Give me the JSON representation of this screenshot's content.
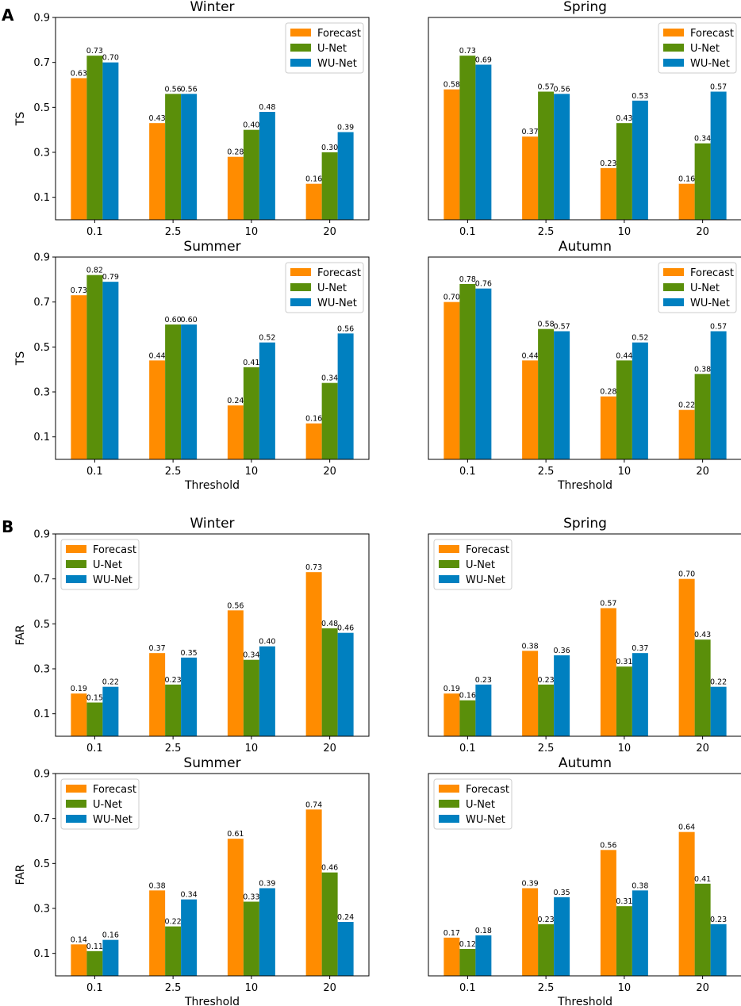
{
  "panel_labels": [
    "A",
    "B"
  ],
  "colors": {
    "Forecast": "#ff8c00",
    "U-Net": "#5a8f0a",
    "WU-Net": "#0080c0"
  },
  "chart_data": [
    {
      "type": "bar",
      "panel": "A",
      "title": "Winter",
      "ylabel": "TS",
      "xlabel": "",
      "categories": [
        "0.1",
        "2.5",
        "10",
        "20"
      ],
      "ylim": [
        0,
        0.9
      ],
      "yticks": [
        "0.1",
        "0.3",
        "0.5",
        "0.7",
        "0.9"
      ],
      "legend": "top-right",
      "series": [
        {
          "name": "Forecast",
          "values": [
            0.63,
            0.43,
            0.28,
            0.16
          ]
        },
        {
          "name": "U-Net",
          "values": [
            0.73,
            0.56,
            0.4,
            0.3
          ]
        },
        {
          "name": "WU-Net",
          "values": [
            0.7,
            0.56,
            0.48,
            0.39
          ]
        }
      ]
    },
    {
      "type": "bar",
      "panel": "A",
      "title": "Spring",
      "ylabel": "",
      "xlabel": "",
      "categories": [
        "0.1",
        "2.5",
        "10",
        "20"
      ],
      "ylim": [
        0,
        0.9
      ],
      "yticks": [],
      "legend": "top-right",
      "series": [
        {
          "name": "Forecast",
          "values": [
            0.58,
            0.37,
            0.23,
            0.16
          ]
        },
        {
          "name": "U-Net",
          "values": [
            0.73,
            0.57,
            0.43,
            0.34
          ]
        },
        {
          "name": "WU-Net",
          "values": [
            0.69,
            0.56,
            0.53,
            0.57
          ]
        }
      ]
    },
    {
      "type": "bar",
      "panel": "A",
      "title": "Summer",
      "ylabel": "TS",
      "xlabel": "Threshold",
      "categories": [
        "0.1",
        "2.5",
        "10",
        "20"
      ],
      "ylim": [
        0,
        0.9
      ],
      "yticks": [
        "0.1",
        "0.3",
        "0.5",
        "0.7",
        "0.9"
      ],
      "legend": "top-right",
      "series": [
        {
          "name": "Forecast",
          "values": [
            0.73,
            0.44,
            0.24,
            0.16
          ]
        },
        {
          "name": "U-Net",
          "values": [
            0.82,
            0.6,
            0.41,
            0.34
          ]
        },
        {
          "name": "WU-Net",
          "values": [
            0.79,
            0.6,
            0.52,
            0.56
          ]
        }
      ]
    },
    {
      "type": "bar",
      "panel": "A",
      "title": "Autumn",
      "ylabel": "",
      "xlabel": "Threshold",
      "categories": [
        "0.1",
        "2.5",
        "10",
        "20"
      ],
      "ylim": [
        0,
        0.9
      ],
      "yticks": [],
      "legend": "top-right",
      "series": [
        {
          "name": "Forecast",
          "values": [
            0.7,
            0.44,
            0.28,
            0.22
          ]
        },
        {
          "name": "U-Net",
          "values": [
            0.78,
            0.58,
            0.44,
            0.38
          ]
        },
        {
          "name": "WU-Net",
          "values": [
            0.76,
            0.57,
            0.52,
            0.57
          ]
        }
      ]
    },
    {
      "type": "bar",
      "panel": "B",
      "title": "Winter",
      "ylabel": "FAR",
      "xlabel": "",
      "categories": [
        "0.1",
        "2.5",
        "10",
        "20"
      ],
      "ylim": [
        0,
        0.9
      ],
      "yticks": [
        "0.1",
        "0.3",
        "0.5",
        "0.7",
        "0.9"
      ],
      "legend": "top-left",
      "series": [
        {
          "name": "Forecast",
          "values": [
            0.19,
            0.37,
            0.56,
            0.73
          ]
        },
        {
          "name": "U-Net",
          "values": [
            0.15,
            0.23,
            0.34,
            0.48
          ]
        },
        {
          "name": "WU-Net",
          "values": [
            0.22,
            0.35,
            0.4,
            0.46
          ]
        }
      ]
    },
    {
      "type": "bar",
      "panel": "B",
      "title": "Spring",
      "ylabel": "",
      "xlabel": "",
      "categories": [
        "0.1",
        "2.5",
        "10",
        "20"
      ],
      "ylim": [
        0,
        0.9
      ],
      "yticks": [],
      "legend": "top-left",
      "series": [
        {
          "name": "Forecast",
          "values": [
            0.19,
            0.38,
            0.57,
            0.7
          ]
        },
        {
          "name": "U-Net",
          "values": [
            0.16,
            0.23,
            0.31,
            0.43
          ]
        },
        {
          "name": "WU-Net",
          "values": [
            0.23,
            0.36,
            0.37,
            0.22
          ]
        }
      ]
    },
    {
      "type": "bar",
      "panel": "B",
      "title": "Summer",
      "ylabel": "FAR",
      "xlabel": "Threshold",
      "categories": [
        "0.1",
        "2.5",
        "10",
        "20"
      ],
      "ylim": [
        0,
        0.9
      ],
      "yticks": [
        "0.1",
        "0.3",
        "0.5",
        "0.7",
        "0.9"
      ],
      "legend": "top-left",
      "series": [
        {
          "name": "Forecast",
          "values": [
            0.14,
            0.38,
            0.61,
            0.74
          ]
        },
        {
          "name": "U-Net",
          "values": [
            0.11,
            0.22,
            0.33,
            0.46
          ]
        },
        {
          "name": "WU-Net",
          "values": [
            0.16,
            0.34,
            0.39,
            0.24
          ]
        }
      ]
    },
    {
      "type": "bar",
      "panel": "B",
      "title": "Autumn",
      "ylabel": "",
      "xlabel": "Threshold",
      "categories": [
        "0.1",
        "2.5",
        "10",
        "20"
      ],
      "ylim": [
        0,
        0.9
      ],
      "yticks": [],
      "legend": "top-left",
      "series": [
        {
          "name": "Forecast",
          "values": [
            0.17,
            0.39,
            0.56,
            0.64
          ]
        },
        {
          "name": "U-Net",
          "values": [
            0.12,
            0.23,
            0.31,
            0.41
          ]
        },
        {
          "name": "WU-Net",
          "values": [
            0.18,
            0.35,
            0.38,
            0.23
          ]
        }
      ]
    }
  ]
}
